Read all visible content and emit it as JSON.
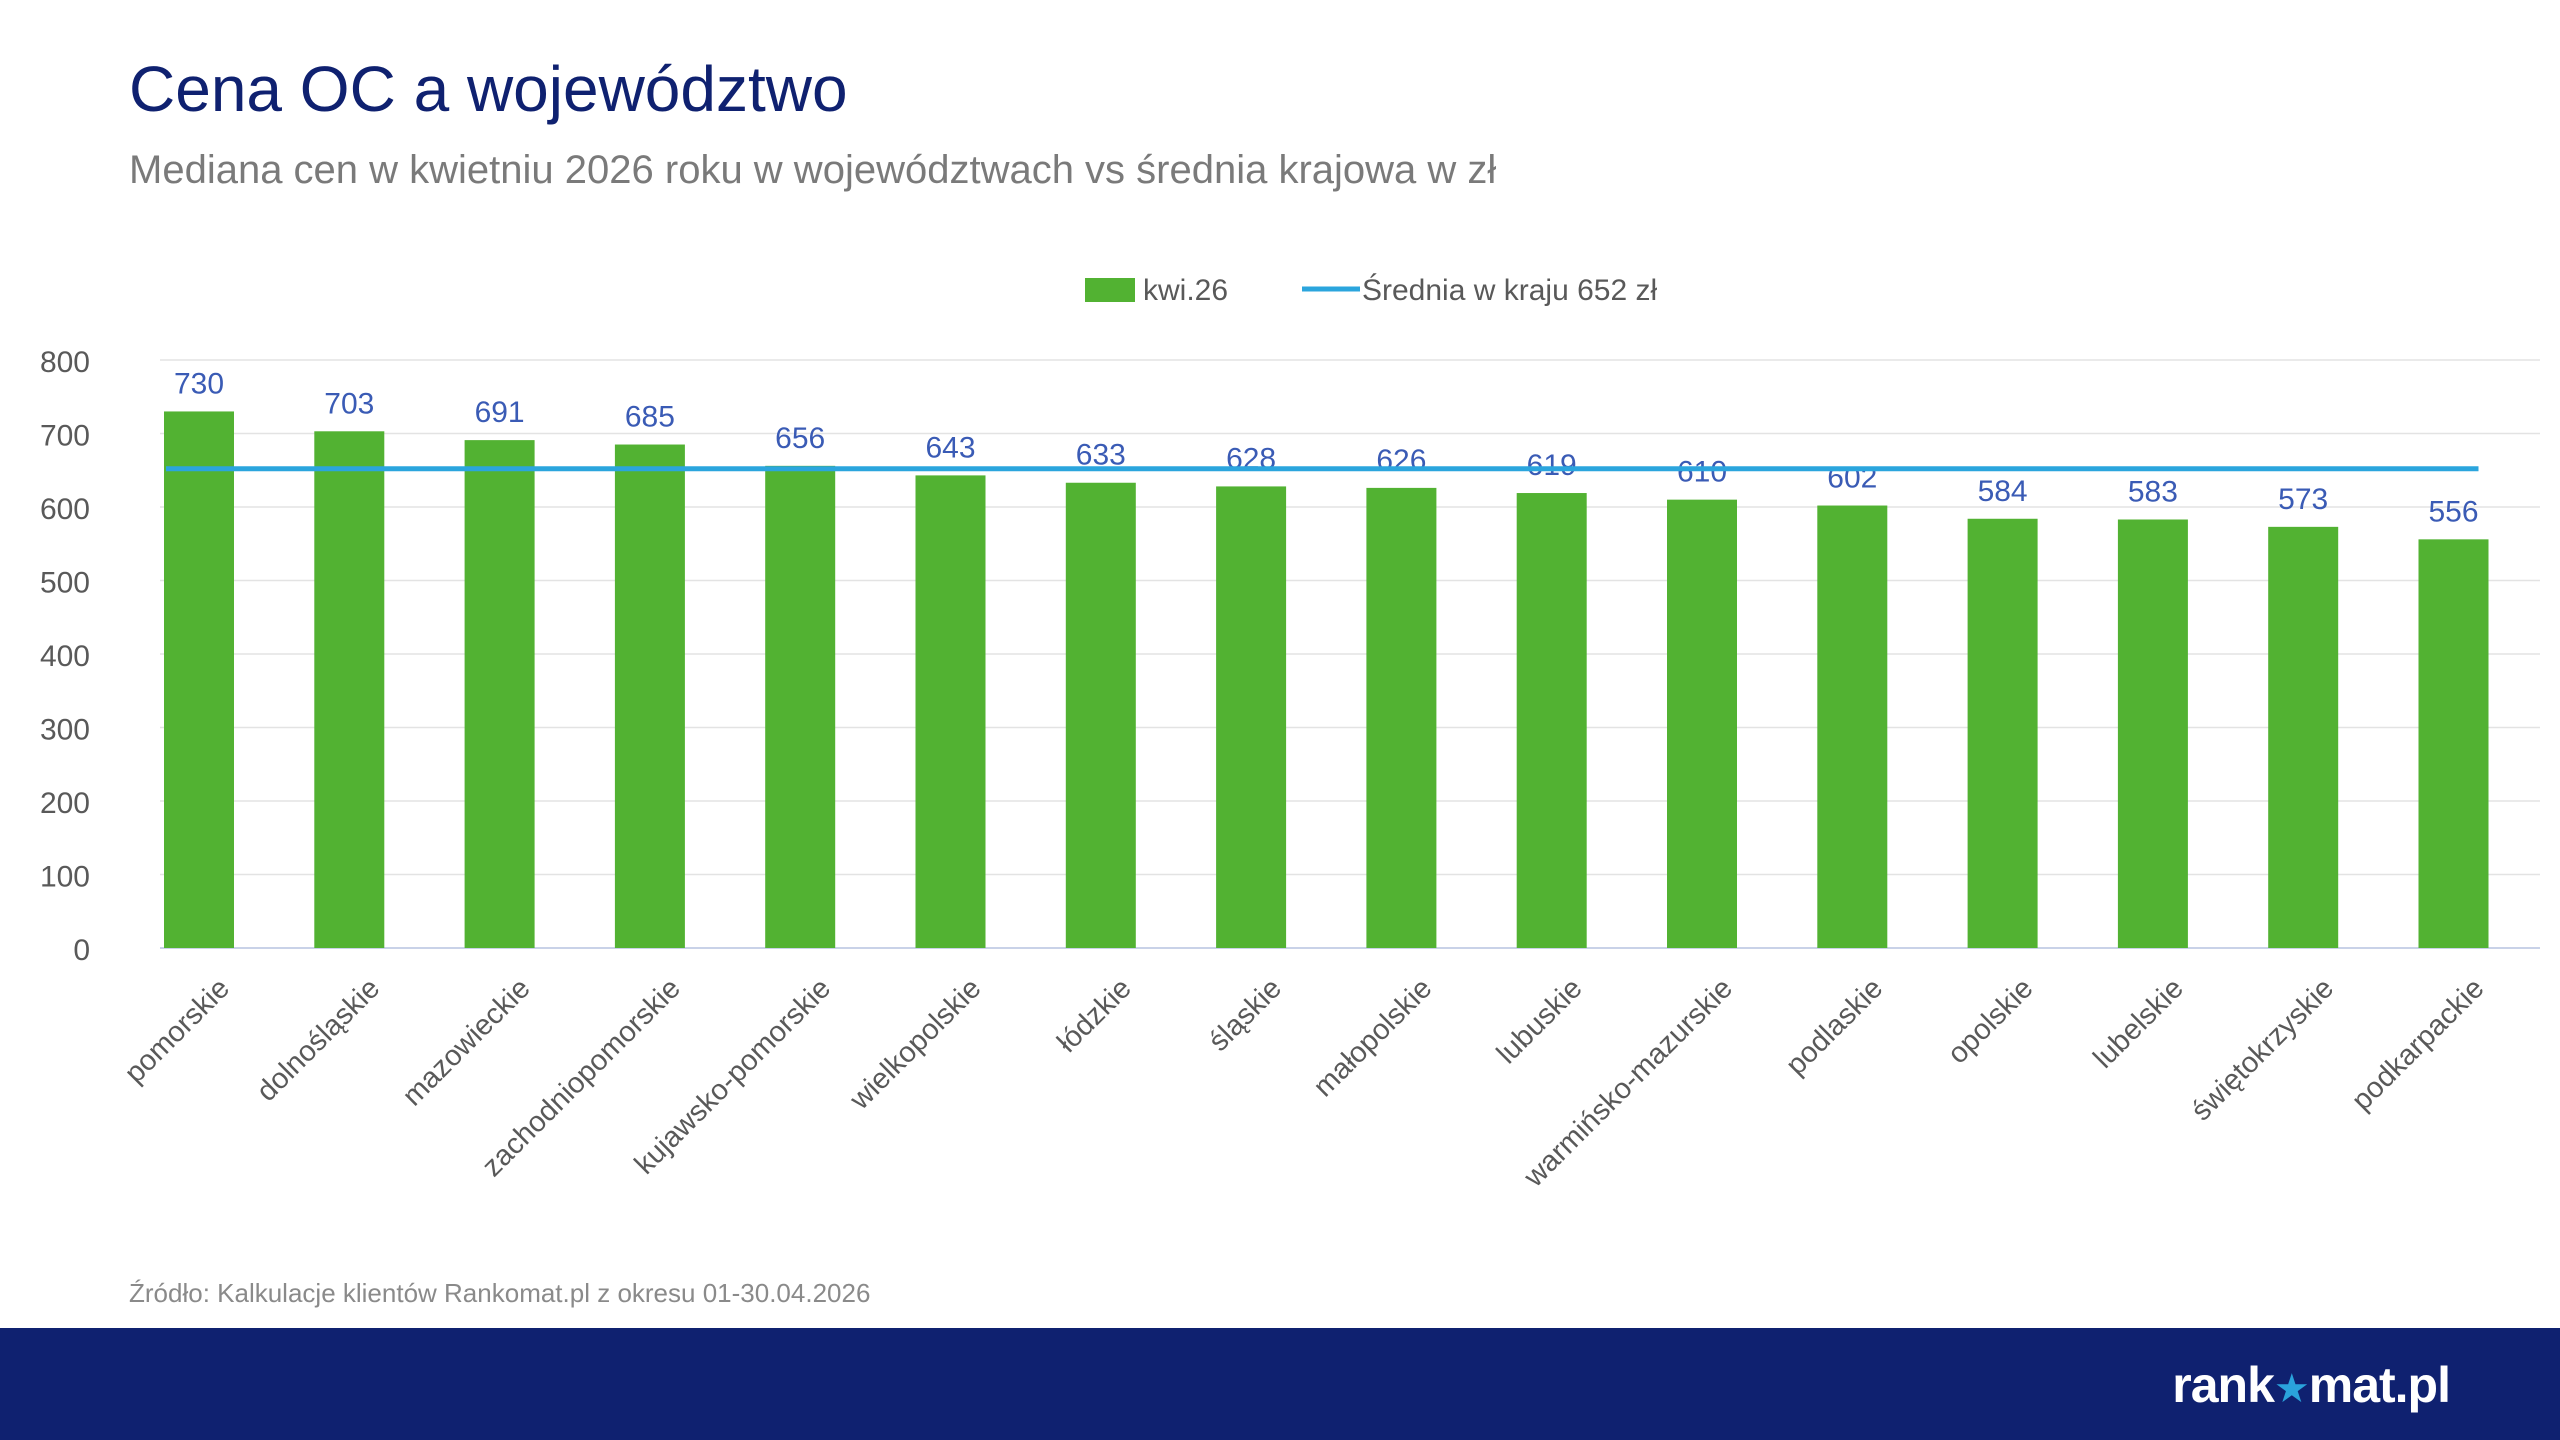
{
  "header": {
    "title": "Cena OC a województwo",
    "subtitle": "Mediana cen w kwietniu 2026 roku w województwach vs średnia krajowa w zł"
  },
  "chart_data": {
    "type": "bar",
    "categories": [
      "pomorskie",
      "dolnośląskie",
      "mazowieckie",
      "zachodniopomorskie",
      "kujawsko-pomorskie",
      "wielkopolskie",
      "łódzkie",
      "śląskie",
      "małopolskie",
      "lubuskie",
      "warmińsko-mazurskie",
      "podlaskie",
      "opolskie",
      "lubelskie",
      "świętokrzyskie",
      "podkarpackie"
    ],
    "series": [
      {
        "name": "kwi.26",
        "type": "bar",
        "values": [
          730,
          703,
          691,
          685,
          656,
          643,
          633,
          628,
          626,
          619,
          610,
          602,
          584,
          583,
          573,
          556
        ],
        "color": "#52b232"
      },
      {
        "name": "Średnia w kraju 652 zł",
        "type": "line",
        "value": 652,
        "color": "#2ba5dd"
      }
    ],
    "ylim": [
      0,
      800
    ],
    "yticks": [
      0,
      100,
      200,
      300,
      400,
      500,
      600,
      700,
      800
    ],
    "grid": true,
    "legend_position": "top-center",
    "data_label_color": "#3a5bb5"
  },
  "footer": {
    "source": "Źródło: Kalkulacje klientów Rankomat.pl z okresu 01-30.04.2026",
    "logo_left": "rank",
    "logo_right": "mat.pl",
    "logo_icon": "star-icon"
  }
}
